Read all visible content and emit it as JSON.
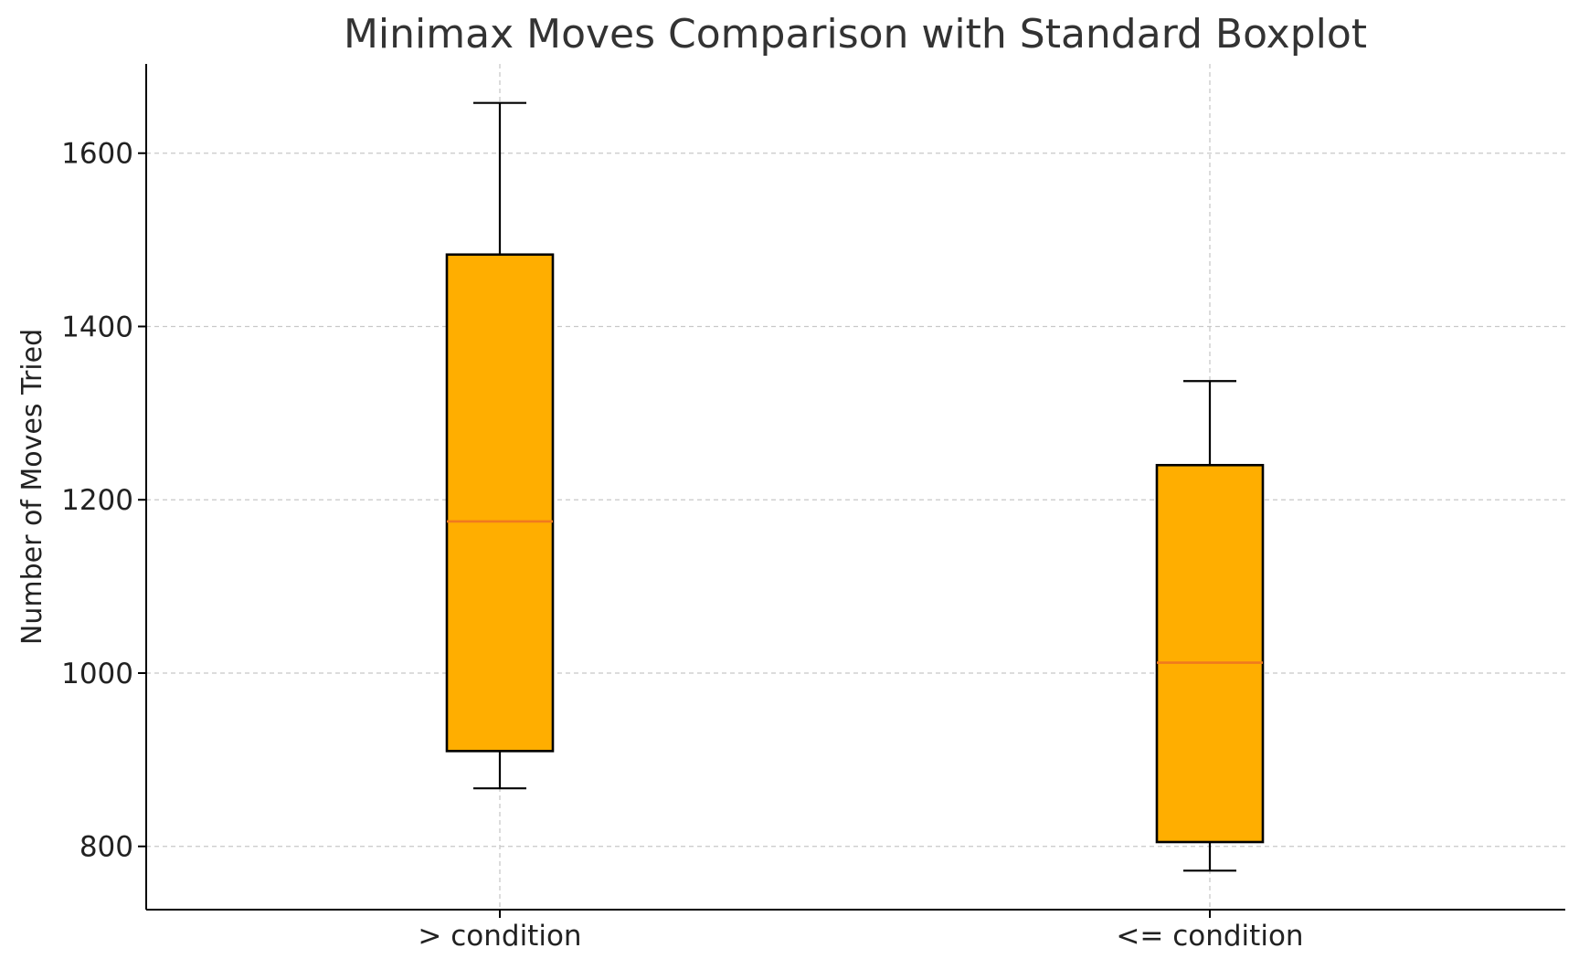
{
  "chart_data": {
    "type": "boxplot",
    "title": "Minimax Moves Comparison with Standard Boxplot",
    "xlabel": "",
    "ylabel": "Number of Moves Tried",
    "categories": [
      "> condition",
      "<= condition"
    ],
    "boxes": [
      {
        "category": "> condition",
        "whisker_low": 867,
        "q1": 910,
        "median": 1175,
        "q3": 1483,
        "whisker_high": 1658
      },
      {
        "category": "<= condition",
        "whisker_low": 772,
        "q1": 805,
        "median": 1012,
        "q3": 1240,
        "whisker_high": 1337
      }
    ],
    "ylim": [
      727,
      1703
    ],
    "yticks": [
      800,
      1000,
      1200,
      1400,
      1600
    ],
    "ytick_labels": [
      "800",
      "1000",
      "1200",
      "1400",
      "1600"
    ],
    "grid": true,
    "colors": {
      "box_fill": "#FFAE00",
      "box_edge": "#000000",
      "median": "#F07A1E",
      "grid": "#c8c8c8",
      "axis": "#000000"
    }
  }
}
